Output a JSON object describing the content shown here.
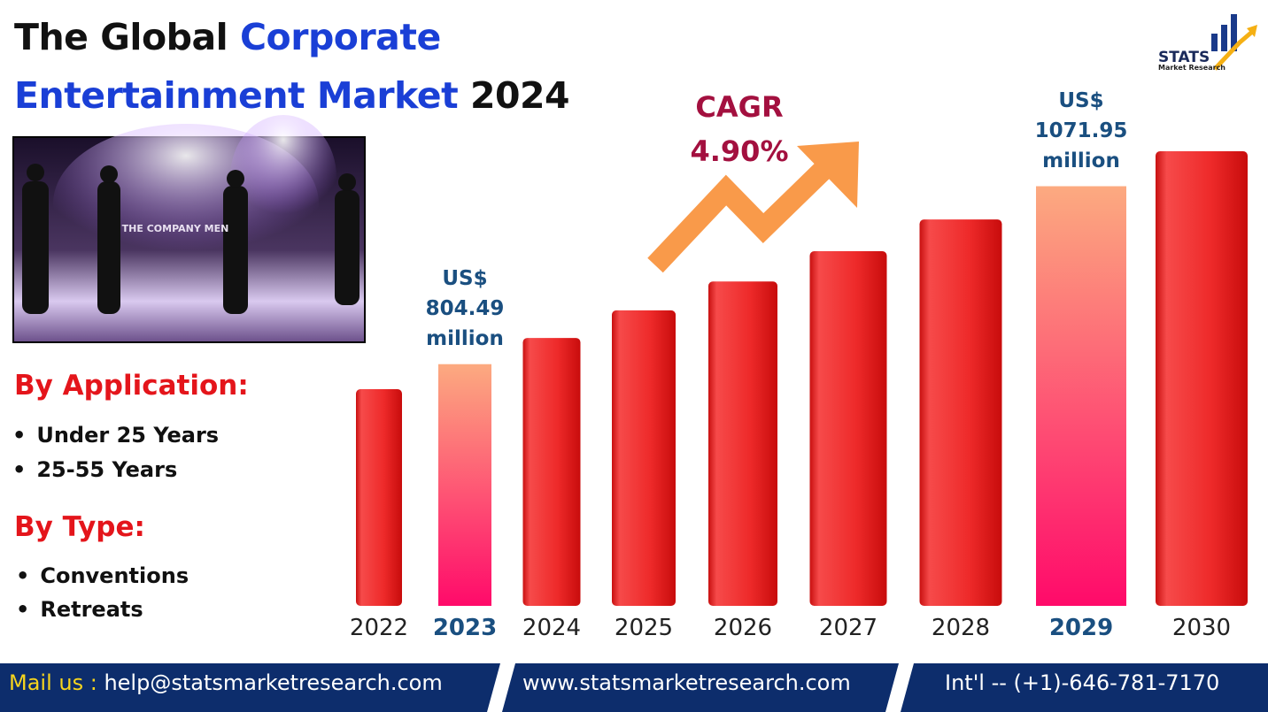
{
  "header": {
    "title_part1": "The Global ",
    "title_part2": "Corporate",
    "title_part3": "Entertainment Market",
    "title_part4": " 2024"
  },
  "logo": {
    "name": "STATS",
    "tagline": "Market Research"
  },
  "image": {
    "sign_text": "THE COMPANY MEN"
  },
  "segments": [
    {
      "heading": "By Application:",
      "items": [
        "Under 25 Years",
        "25-55 Years"
      ]
    },
    {
      "heading": "By Type:",
      "items": [
        "Conventions",
        "Retreats"
      ]
    }
  ],
  "chart_data": {
    "type": "bar",
    "categories": [
      "2022",
      "2023",
      "2024",
      "2025",
      "2026",
      "2027",
      "2028",
      "2029",
      "2030"
    ],
    "values": [
      766.9,
      804.49,
      843.9,
      885.3,
      928.7,
      974.2,
      1021.9,
      1071.95,
      1124.5
    ],
    "value_labels": [
      null,
      "US$ 804.49 million",
      null,
      null,
      null,
      null,
      null,
      "US$ 1071.95 million",
      null
    ],
    "highlight_indices": [
      1,
      7
    ],
    "color": "#e81a1a",
    "highlight_color": "#ff2a6a",
    "cagr_label": "CAGR",
    "cagr_value": "4.90%"
  },
  "footer": {
    "mail_prefix": "Mail us :",
    "email": " help@statsmarketresearch.com",
    "website": "www.statsmarketresearch.com",
    "phone": "Int'l -- (+1)-646-781-7170"
  }
}
